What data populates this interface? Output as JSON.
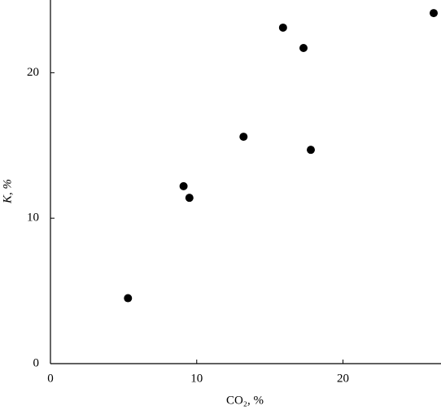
{
  "chart_data": {
    "type": "scatter",
    "x_label": "CO₂, %",
    "y_label": "K, %",
    "x": [
      5.3,
      9.1,
      9.5,
      13.2,
      15.9,
      17.3,
      17.8,
      26.2
    ],
    "values": [
      4.5,
      12.2,
      11.4,
      15.6,
      23.1,
      21.7,
      14.7,
      24.1
    ],
    "color": "#000000",
    "xlim": [
      0,
      26.7
    ],
    "ylim": [
      0,
      25
    ],
    "xticks": [
      0,
      10,
      20
    ],
    "yticks": [
      0,
      10,
      20
    ],
    "grid": false
  }
}
